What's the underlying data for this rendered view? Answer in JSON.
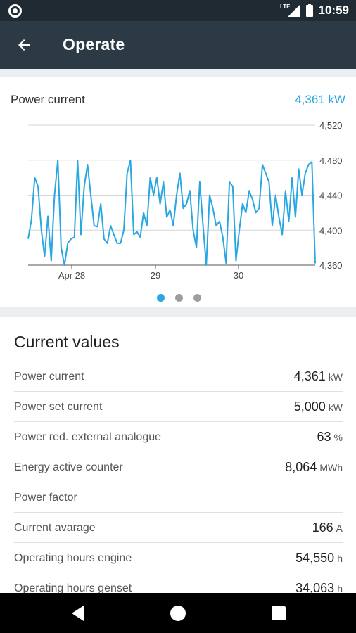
{
  "status_bar": {
    "network": "LTE",
    "time": "10:59"
  },
  "app_bar": {
    "title": "Operate"
  },
  "chart_card": {
    "label": "Power current",
    "value": "4,361 kW"
  },
  "chart_data": {
    "type": "line",
    "title": "",
    "xlabel": "",
    "ylabel": "",
    "x_tick_labels": [
      "Apr 28",
      "29",
      "30"
    ],
    "y_tick_labels": [
      "4,520",
      "4,480",
      "4,440",
      "4,400",
      "4,360"
    ],
    "ylim": [
      4360,
      4520
    ],
    "grid": true,
    "series": [
      {
        "values": [
          4390,
          4412,
          4460,
          4450,
          4400,
          4370,
          4416,
          4365,
          4440,
          4480,
          4380,
          4360,
          4385,
          4390,
          4392,
          4480,
          4395,
          4450,
          4475,
          4440,
          4405,
          4404,
          4430,
          4390,
          4385,
          4405,
          4395,
          4385,
          4385,
          4400,
          4465,
          4480,
          4395,
          4398,
          4392,
          4420,
          4405,
          4460,
          4440,
          4460,
          4430,
          4455,
          4415,
          4423,
          4405,
          4440,
          4465,
          4425,
          4430,
          4445,
          4400,
          4380,
          4455,
          4405,
          4360,
          4440,
          4425,
          4405,
          4410,
          4392,
          4362,
          4455,
          4450,
          4365,
          4400,
          4430,
          4420,
          4445,
          4435,
          4420,
          4425,
          4475,
          4465,
          4455,
          4405,
          4440,
          4415,
          4395,
          4445,
          4410,
          4460,
          4415,
          4470,
          4440,
          4465,
          4475,
          4478,
          4362
        ]
      }
    ],
    "colors": {
      "line": "#29a7e1",
      "grid": "#d6d6d6",
      "axis": "#555555"
    }
  },
  "pager": {
    "count": 3,
    "active": 0
  },
  "current_values": {
    "title": "Current values",
    "rows": [
      {
        "label": "Power current",
        "value": "4,361",
        "unit": "kW"
      },
      {
        "label": "Power set current",
        "value": "5,000",
        "unit": "kW"
      },
      {
        "label": "Power red. external analogue",
        "value": "63",
        "unit": "%"
      },
      {
        "label": "Energy active counter",
        "value": "8,064",
        "unit": "MWh"
      },
      {
        "label": "Power factor",
        "value": "",
        "unit": ""
      },
      {
        "label": "Current avarage",
        "value": "166",
        "unit": "A"
      },
      {
        "label": "Operating hours engine",
        "value": "54,550",
        "unit": "h"
      },
      {
        "label": "Operating hours genset",
        "value": "34,063",
        "unit": "h"
      }
    ]
  },
  "nav_bar": {
    "icons": [
      "back-triangle-icon",
      "home-circle-icon",
      "recents-square-icon"
    ]
  }
}
